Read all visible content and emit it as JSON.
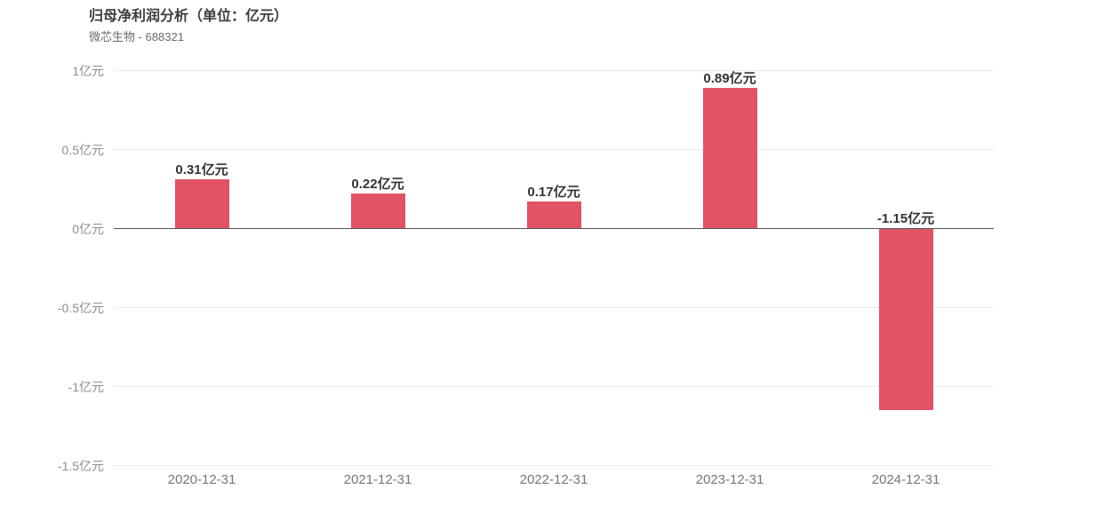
{
  "chart": {
    "title": "归母净利润分析（单位：亿元）",
    "subtitle": "微芯生物 - 688321"
  },
  "chart_data": {
    "type": "bar",
    "title": "归母净利润分析（单位：亿元）",
    "subtitle": "微芯生物 - 688321",
    "company": "微芯生物",
    "stock_code": "688321",
    "unit": "亿元",
    "categories": [
      "2020-12-31",
      "2021-12-31",
      "2022-12-31",
      "2023-12-31",
      "2024-12-31"
    ],
    "values": [
      0.31,
      0.22,
      0.17,
      0.89,
      -1.15
    ],
    "value_labels": [
      "0.31亿元",
      "0.22亿元",
      "0.17亿元",
      "0.89亿元",
      "-1.15亿元"
    ],
    "xlabel": "",
    "ylabel": "",
    "ylim": [
      -1.5,
      1.0
    ],
    "y_ticks": [
      1,
      0.5,
      0,
      -0.5,
      -1,
      -1.5
    ],
    "y_tick_labels": [
      "1亿元",
      "0.5亿元",
      "0亿元",
      "-0.5亿元",
      "-1亿元",
      "-1.5亿元"
    ],
    "grid": true,
    "legend": "none",
    "bar_color": "#e25365",
    "zero_line_color": "#565656",
    "grid_color": "#ececec"
  }
}
